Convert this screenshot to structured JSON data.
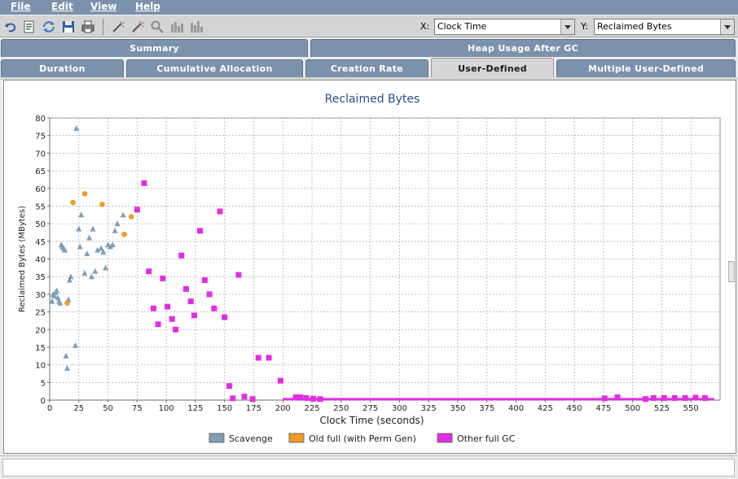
{
  "menu": [
    {
      "label": "File",
      "name": "menu-file"
    },
    {
      "label": "Edit",
      "name": "menu-edit"
    },
    {
      "label": "View",
      "name": "menu-view"
    },
    {
      "label": "Help",
      "name": "menu-help"
    }
  ],
  "toolbar": {
    "icons": [
      "undo-icon",
      "export-icon",
      "refresh-icon",
      "save-icon",
      "print-icon",
      "zoom-in-icon",
      "zoom-out-icon",
      "zoom-icon",
      "histogram-icon",
      "histogram-alt-icon"
    ],
    "x_label": "X:",
    "x_value": "Clock Time",
    "y_label": "Y:",
    "y_value": "Reclaimed Bytes"
  },
  "tabs_top": [
    {
      "label": "Summary",
      "name": "tab-summary"
    },
    {
      "label": "Heap Usage After GC",
      "name": "tab-heap-usage-after-gc"
    }
  ],
  "tabs_bottom": [
    {
      "label": "Duration",
      "name": "tab-duration",
      "active": false
    },
    {
      "label": "Cumulative Allocation",
      "name": "tab-cumulative-allocation",
      "active": false
    },
    {
      "label": "Creation Rate",
      "name": "tab-creation-rate",
      "active": false
    },
    {
      "label": "User-Defined",
      "name": "tab-user-defined",
      "active": true
    },
    {
      "label": "Multiple User-Defined",
      "name": "tab-multiple-user-defined",
      "active": false
    }
  ],
  "chart_data": {
    "type": "scatter",
    "title": "Reclaimed Bytes",
    "xlabel": "Clock Time  (seconds)",
    "ylabel": "Reclaimed Bytes  (MBytes)",
    "xlim": [
      0,
      575
    ],
    "ylim": [
      0,
      80
    ],
    "xticks": [
      0,
      25,
      50,
      75,
      100,
      125,
      150,
      175,
      200,
      225,
      250,
      275,
      300,
      325,
      350,
      375,
      400,
      425,
      450,
      475,
      500,
      525,
      550
    ],
    "yticks": [
      0,
      5,
      10,
      15,
      20,
      25,
      30,
      35,
      40,
      45,
      50,
      55,
      60,
      65,
      70,
      75,
      80
    ],
    "grid": true,
    "legend_position": "bottom",
    "series": [
      {
        "name": "Scavenge",
        "marker": "triangle",
        "color": "#7f9fb8",
        "points": [
          [
            2,
            28
          ],
          [
            3,
            30
          ],
          [
            4,
            29.5
          ],
          [
            5,
            30.5
          ],
          [
            6,
            31
          ],
          [
            7,
            29
          ],
          [
            8,
            28
          ],
          [
            9,
            27.5
          ],
          [
            10,
            44
          ],
          [
            11,
            43.5
          ],
          [
            12,
            43
          ],
          [
            13,
            42.5
          ],
          [
            14,
            12.5
          ],
          [
            15,
            9
          ],
          [
            16,
            28.5
          ],
          [
            17,
            34
          ],
          [
            18,
            35
          ],
          [
            22,
            15.5
          ],
          [
            23,
            77
          ],
          [
            25,
            48.5
          ],
          [
            26,
            43.5
          ],
          [
            27,
            52.5
          ],
          [
            30,
            36
          ],
          [
            32,
            41.5
          ],
          [
            34,
            46
          ],
          [
            36,
            35
          ],
          [
            37,
            48.5
          ],
          [
            39,
            36.5
          ],
          [
            41,
            42.5
          ],
          [
            44,
            43
          ],
          [
            46,
            42
          ],
          [
            48,
            37.5
          ],
          [
            50,
            44
          ],
          [
            52,
            43.5
          ],
          [
            54,
            44
          ],
          [
            56,
            48
          ],
          [
            58,
            50
          ],
          [
            63,
            52.5
          ]
        ]
      },
      {
        "name": "Old full (with Perm Gen)",
        "marker": "circle",
        "color": "#f29a26",
        "points": [
          [
            15,
            27.5
          ],
          [
            20,
            56
          ],
          [
            30,
            58.5
          ],
          [
            45,
            55.5
          ],
          [
            64,
            47
          ],
          [
            70,
            52
          ]
        ]
      },
      {
        "name": "Other full GC",
        "marker": "square",
        "color": "#e12ee2",
        "points": [
          [
            75,
            54
          ],
          [
            81,
            61.5
          ],
          [
            85,
            36.5
          ],
          [
            89,
            26
          ],
          [
            93,
            21.5
          ],
          [
            97,
            34.5
          ],
          [
            101,
            26.5
          ],
          [
            105,
            23
          ],
          [
            108,
            20
          ],
          [
            113,
            41
          ],
          [
            117,
            31.5
          ],
          [
            121,
            28
          ],
          [
            124,
            24
          ],
          [
            129,
            48
          ],
          [
            133,
            34
          ],
          [
            137,
            30
          ],
          [
            141,
            26
          ],
          [
            146,
            53.5
          ],
          [
            150,
            23.5
          ],
          [
            154,
            4
          ],
          [
            157,
            0.5
          ],
          [
            162,
            35.5
          ],
          [
            167,
            1
          ],
          [
            174,
            0.3
          ],
          [
            179,
            12
          ],
          [
            188,
            12
          ],
          [
            198,
            5.5
          ],
          [
            211,
            0.8
          ],
          [
            215,
            0.8
          ],
          [
            220,
            0.6
          ],
          [
            226,
            0.4
          ],
          [
            232,
            0.3
          ],
          [
            476,
            0.5
          ],
          [
            487,
            0.8
          ],
          [
            511,
            0.3
          ],
          [
            518,
            0.6
          ],
          [
            527,
            0.6
          ],
          [
            536,
            0.6
          ],
          [
            545,
            0.6
          ],
          [
            554,
            0.7
          ],
          [
            562,
            0.6
          ]
        ],
        "baseline_segment": {
          "x_from": 200,
          "x_to": 570,
          "y": 0.15
        }
      }
    ]
  }
}
